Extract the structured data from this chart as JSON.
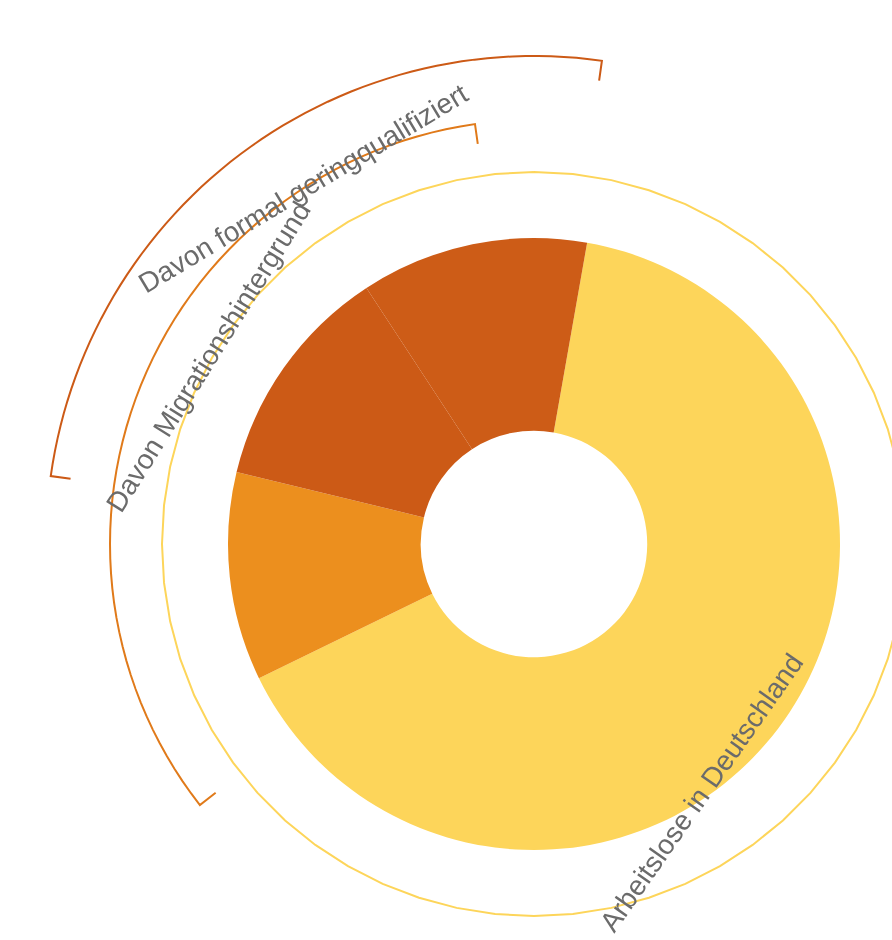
{
  "chart_data": {
    "type": "donut",
    "categories": [
      null,
      null,
      null,
      null
    ],
    "values": [
      65,
      11,
      12,
      12
    ],
    "colors": [
      "#fdd55a",
      "#ec8f1e",
      "#cc5a16",
      "#cd5c17"
    ],
    "annotations": [
      "Arbeitslose in Deutschland",
      "Davon Migrationshintergrund",
      "Davon formal geringqualifiziert"
    ],
    "legend": false
  }
}
